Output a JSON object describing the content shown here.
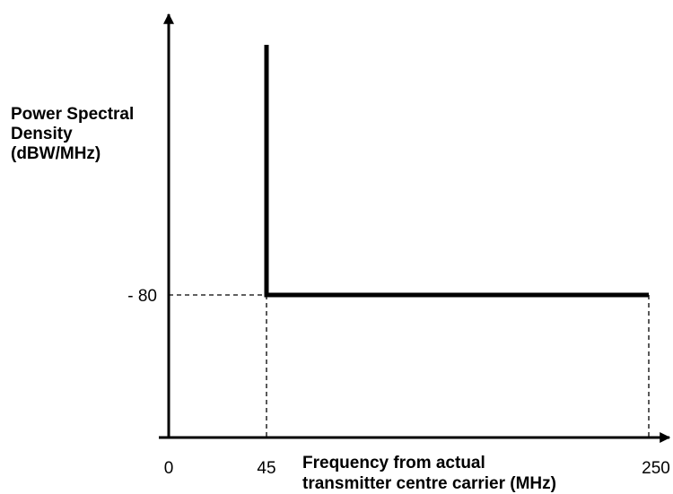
{
  "chart_data": {
    "type": "line",
    "title": "",
    "ylabel_lines": [
      "Power Spectral",
      "Density",
      "(dBW/MHz)"
    ],
    "xlabel_lines": [
      "Frequency  from actual",
      "transmitter centre carrier (MHz)"
    ],
    "x_ticks": [
      {
        "value": 0,
        "label": "0"
      },
      {
        "value": 45,
        "label": "45"
      },
      {
        "value": 250,
        "label": "250"
      }
    ],
    "y_ticks": [
      {
        "value": -80,
        "label": "- 80"
      }
    ],
    "series": [
      {
        "x": [
          45,
          45,
          250
        ],
        "y": [
          -40,
          -80,
          -80
        ],
        "color": "#000000"
      }
    ],
    "reference_lines": [
      {
        "from": [
          0,
          -80
        ],
        "to": [
          45,
          -80
        ]
      },
      {
        "from": [
          45,
          -80
        ],
        "to": [
          45,
          -120
        ]
      },
      {
        "from": [
          250,
          -80
        ],
        "to": [
          250,
          -120
        ]
      }
    ],
    "grid": false,
    "legend": false
  }
}
